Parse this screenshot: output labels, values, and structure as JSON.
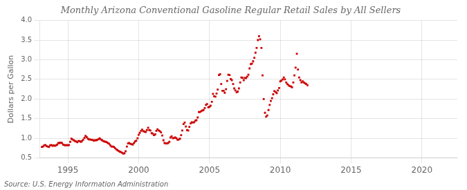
{
  "chart_data": {
    "type": "scatter",
    "title": "Monthly Arizona Conventional Gasoline Regular Retail Sales by All Sellers",
    "ylabel": "Dollars per Gallon",
    "source": "Source: U.S. Energy Information Administration",
    "color": "#cc0000",
    "marker": "square",
    "grid": true,
    "xlim": [
      1993.0,
      2022.5
    ],
    "xticks": [
      1995,
      2000,
      2005,
      2010,
      2015,
      2020
    ],
    "ylim": [
      0.5,
      4.0
    ],
    "yticks": [
      0.5,
      {
        "value": 1.0,
        "label": "1.0"
      },
      1.5,
      {
        "value": 2.0,
        "label": "2.0"
      },
      2.5,
      {
        "value": 3.0,
        "label": "3.0"
      },
      3.5,
      {
        "value": 4.0,
        "label": "4.0"
      }
    ],
    "x": [
      1993.17,
      1993.25,
      1993.33,
      1993.42,
      1993.5,
      1993.58,
      1993.67,
      1993.75,
      1993.83,
      1993.92,
      1994.0,
      1994.08,
      1994.17,
      1994.25,
      1994.33,
      1994.42,
      1994.5,
      1994.58,
      1994.67,
      1994.75,
      1994.83,
      1994.92,
      1995.0,
      1995.08,
      1995.17,
      1995.25,
      1995.33,
      1995.42,
      1995.5,
      1995.58,
      1995.67,
      1995.75,
      1995.83,
      1995.92,
      1996.0,
      1996.08,
      1996.17,
      1996.25,
      1996.33,
      1996.42,
      1996.5,
      1996.58,
      1996.67,
      1996.75,
      1996.83,
      1996.92,
      1997.0,
      1997.08,
      1997.17,
      1997.25,
      1997.33,
      1997.42,
      1997.5,
      1997.58,
      1997.67,
      1997.75,
      1997.83,
      1997.92,
      1998.0,
      1998.08,
      1998.17,
      1998.25,
      1998.33,
      1998.42,
      1998.5,
      1998.58,
      1998.67,
      1998.75,
      1998.83,
      1998.92,
      1999.0,
      1999.08,
      1999.17,
      1999.25,
      1999.33,
      1999.42,
      1999.5,
      1999.58,
      1999.67,
      1999.75,
      1999.83,
      1999.92,
      2000.0,
      2000.08,
      2000.17,
      2000.25,
      2000.33,
      2000.42,
      2000.5,
      2000.58,
      2000.67,
      2000.75,
      2000.83,
      2000.92,
      2001.0,
      2001.08,
      2001.17,
      2001.25,
      2001.33,
      2001.42,
      2001.5,
      2001.58,
      2001.67,
      2001.75,
      2001.83,
      2001.92,
      2002.0,
      2002.08,
      2002.17,
      2002.25,
      2002.33,
      2002.42,
      2002.5,
      2002.58,
      2002.67,
      2002.75,
      2002.83,
      2002.92,
      2003.0,
      2003.08,
      2003.17,
      2003.25,
      2003.33,
      2003.42,
      2003.5,
      2003.58,
      2003.67,
      2003.75,
      2003.83,
      2003.92,
      2004.0,
      2004.08,
      2004.17,
      2004.25,
      2004.33,
      2004.42,
      2004.5,
      2004.58,
      2004.67,
      2004.75,
      2004.83,
      2004.92,
      2005.0,
      2005.08,
      2005.17,
      2005.25,
      2005.33,
      2005.42,
      2005.5,
      2005.58,
      2005.67,
      2005.75,
      2005.83,
      2005.92,
      2006.0,
      2006.08,
      2006.17,
      2006.25,
      2006.33,
      2006.42,
      2006.5,
      2006.58,
      2006.67,
      2006.75,
      2006.83,
      2006.92,
      2007.0,
      2007.08,
      2007.17,
      2007.25,
      2007.33,
      2007.42,
      2007.5,
      2007.58,
      2007.67,
      2007.75,
      2007.83,
      2007.92,
      2008.0,
      2008.08,
      2008.17,
      2008.25,
      2008.33,
      2008.42,
      2008.5,
      2008.58,
      2008.67,
      2008.75,
      2008.83,
      2008.92,
      2009.0,
      2009.08,
      2009.17,
      2009.25,
      2009.33,
      2009.42,
      2009.5,
      2009.58,
      2009.67,
      2009.75,
      2009.83,
      2009.92,
      2010.0,
      2010.08,
      2010.17,
      2010.25,
      2010.33,
      2010.42,
      2010.5,
      2010.58,
      2010.67,
      2010.75,
      2010.83,
      2010.92,
      2011.0,
      2011.08,
      2011.17,
      2011.25,
      2011.33,
      2011.42,
      2011.5,
      2011.58,
      2011.67,
      2011.75,
      2011.83,
      2011.92
    ],
    "values": [
      0.78,
      0.79,
      0.82,
      0.83,
      0.8,
      0.79,
      0.78,
      0.82,
      0.83,
      0.81,
      0.82,
      0.81,
      0.82,
      0.84,
      0.88,
      0.88,
      0.89,
      0.88,
      0.84,
      0.83,
      0.82,
      0.83,
      0.82,
      0.83,
      0.91,
      0.99,
      0.97,
      0.95,
      0.93,
      0.92,
      0.9,
      0.93,
      0.93,
      0.91,
      0.93,
      0.96,
      1.01,
      1.06,
      1.03,
      0.99,
      0.97,
      0.97,
      0.96,
      0.96,
      0.94,
      0.95,
      0.95,
      0.96,
      0.98,
      1.0,
      0.97,
      0.95,
      0.93,
      0.92,
      0.91,
      0.9,
      0.88,
      0.86,
      0.82,
      0.79,
      0.79,
      0.78,
      0.75,
      0.72,
      0.7,
      0.68,
      0.66,
      0.65,
      0.63,
      0.61,
      0.62,
      0.67,
      0.79,
      0.87,
      0.88,
      0.86,
      0.85,
      0.84,
      0.88,
      0.92,
      0.94,
      1.0,
      1.09,
      1.14,
      1.19,
      1.22,
      1.18,
      1.17,
      1.16,
      1.21,
      1.27,
      1.21,
      1.2,
      1.13,
      1.12,
      1.08,
      1.1,
      1.19,
      1.23,
      1.2,
      1.18,
      1.15,
      1.07,
      0.95,
      0.88,
      0.87,
      0.87,
      0.88,
      0.91,
      1.02,
      1.05,
      1.0,
      1.01,
      1.02,
      1.0,
      0.96,
      0.97,
      0.99,
      1.08,
      1.2,
      1.36,
      1.4,
      1.3,
      1.21,
      1.2,
      1.29,
      1.38,
      1.41,
      1.4,
      1.41,
      1.45,
      1.46,
      1.53,
      1.67,
      1.67,
      1.69,
      1.71,
      1.72,
      1.77,
      1.85,
      1.87,
      1.79,
      1.8,
      1.83,
      1.93,
      2.13,
      2.07,
      2.06,
      2.14,
      2.24,
      2.61,
      2.63,
      2.38,
      2.21,
      2.21,
      2.16,
      2.25,
      2.46,
      2.62,
      2.61,
      2.51,
      2.48,
      2.38,
      2.27,
      2.22,
      2.17,
      2.19,
      2.27,
      2.42,
      2.55,
      2.54,
      2.48,
      2.54,
      2.53,
      2.57,
      2.62,
      2.78,
      2.89,
      2.9,
      2.96,
      3.05,
      3.18,
      3.3,
      3.5,
      3.6,
      3.52,
      3.3,
      2.6,
      2.0,
      1.65,
      1.55,
      1.58,
      1.72,
      1.85,
      1.95,
      2.02,
      2.12,
      2.2,
      2.18,
      2.15,
      2.22,
      2.28,
      2.45,
      2.47,
      2.5,
      2.55,
      2.5,
      2.42,
      2.38,
      2.35,
      2.33,
      2.32,
      2.3,
      2.42,
      2.6,
      2.8,
      3.15,
      2.75,
      2.55,
      2.48,
      2.42,
      2.45,
      2.42,
      2.4,
      2.38,
      2.35
    ]
  }
}
